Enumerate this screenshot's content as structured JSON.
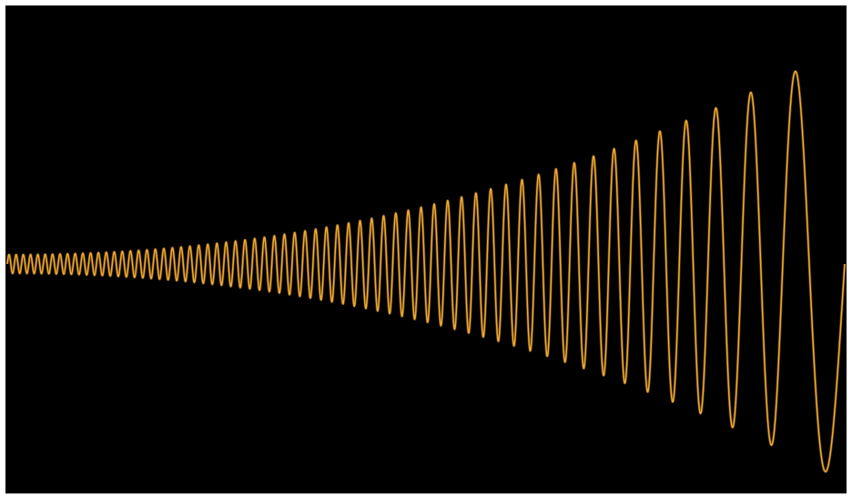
{
  "chart_data": {
    "type": "line",
    "title": "",
    "xlabel": "",
    "ylabel": "",
    "xlim": [
      0,
      1
    ],
    "ylim": [
      -1,
      1
    ],
    "grid": false,
    "legend": "none",
    "background_color": "#000000",
    "series": [
      {
        "color": "#f0a830",
        "function": "chirp",
        "cycles": 64,
        "frequency_start": 1.0,
        "frequency_end": 0.08,
        "amplitude_start": 0.04,
        "amplitude_end": 0.93,
        "amplitude_growth_exponent": 2.1,
        "start_phase_deg": 0
      }
    ]
  }
}
